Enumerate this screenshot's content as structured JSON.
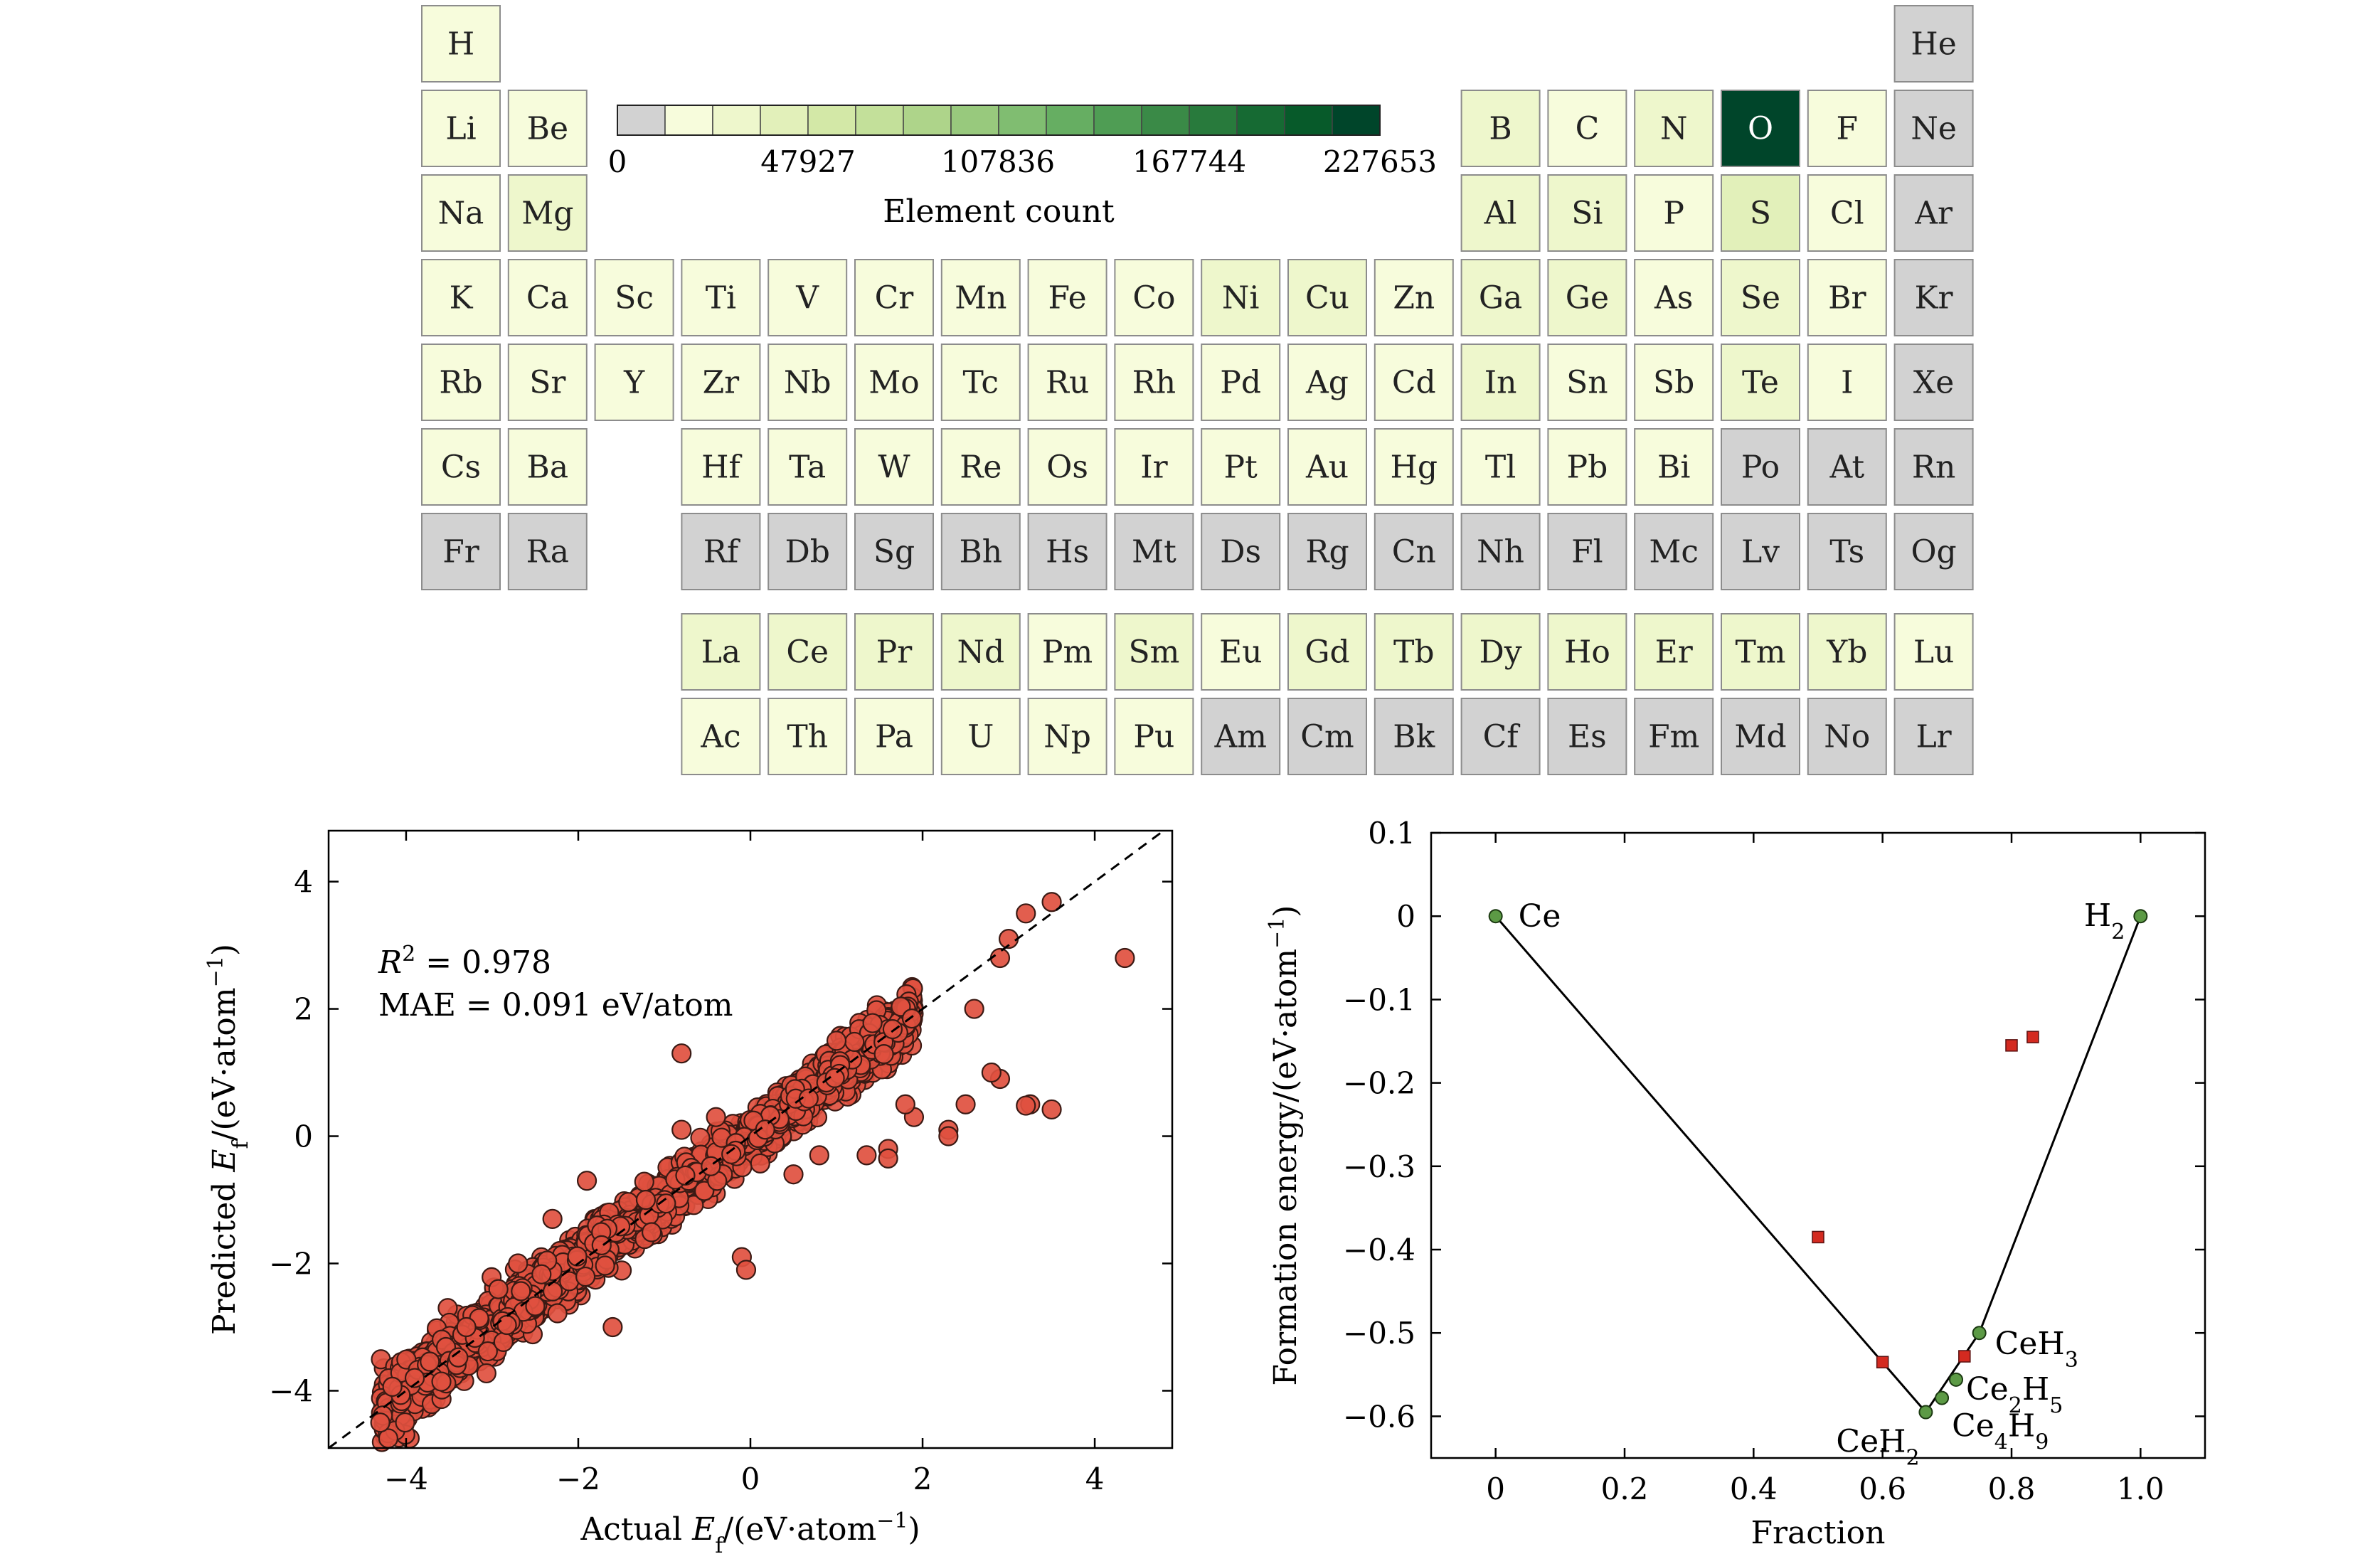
{
  "colors": {
    "zero": "#d2d2d2",
    "scale": [
      "#f7fcdc",
      "#eef7cc",
      "#e2f0ba",
      "#d3e8a7",
      "#c3e09a",
      "#aed48a",
      "#98c97d",
      "#80bd71",
      "#66ae62",
      "#4f9d54",
      "#3a8a47",
      "#287a3c",
      "#166a33",
      "#075a2a",
      "#00452a"
    ],
    "scatter_fill": "#e0503f",
    "stable": "#5c9a45",
    "unstable": "#d42a20"
  },
  "chart_data": [
    {
      "type": "heatmap",
      "title": "",
      "colorbar": {
        "label": "Element count",
        "ticks": [
          "0",
          "47927",
          "107836",
          "167744",
          "227653"
        ],
        "max": 227653
      },
      "elements": [
        {
          "symbol": "H",
          "row": 1,
          "col": 1,
          "count": 12000
        },
        {
          "symbol": "He",
          "row": 1,
          "col": 18,
          "count": 0
        },
        {
          "symbol": "Li",
          "row": 2,
          "col": 1,
          "count": 14000
        },
        {
          "symbol": "Be",
          "row": 2,
          "col": 2,
          "count": 6000
        },
        {
          "symbol": "B",
          "row": 2,
          "col": 13,
          "count": 18000
        },
        {
          "symbol": "C",
          "row": 2,
          "col": 14,
          "count": 12000
        },
        {
          "symbol": "N",
          "row": 2,
          "col": 15,
          "count": 18000
        },
        {
          "symbol": "O",
          "row": 2,
          "col": 16,
          "count": 227653
        },
        {
          "symbol": "F",
          "row": 2,
          "col": 17,
          "count": 12000
        },
        {
          "symbol": "Ne",
          "row": 2,
          "col": 18,
          "count": 0
        },
        {
          "symbol": "Na",
          "row": 3,
          "col": 1,
          "count": 14000
        },
        {
          "symbol": "Mg",
          "row": 3,
          "col": 2,
          "count": 24000
        },
        {
          "symbol": "Al",
          "row": 3,
          "col": 13,
          "count": 20000
        },
        {
          "symbol": "Si",
          "row": 3,
          "col": 14,
          "count": 20000
        },
        {
          "symbol": "P",
          "row": 3,
          "col": 15,
          "count": 12000
        },
        {
          "symbol": "S",
          "row": 3,
          "col": 16,
          "count": 45000
        },
        {
          "symbol": "Cl",
          "row": 3,
          "col": 17,
          "count": 8000
        },
        {
          "symbol": "Ar",
          "row": 3,
          "col": 18,
          "count": 0
        },
        {
          "symbol": "K",
          "row": 4,
          "col": 1,
          "count": 14000
        },
        {
          "symbol": "Ca",
          "row": 4,
          "col": 2,
          "count": 14000
        },
        {
          "symbol": "Sc",
          "row": 4,
          "col": 3,
          "count": 8000
        },
        {
          "symbol": "Ti",
          "row": 4,
          "col": 4,
          "count": 8000
        },
        {
          "symbol": "V",
          "row": 4,
          "col": 5,
          "count": 6000
        },
        {
          "symbol": "Cr",
          "row": 4,
          "col": 6,
          "count": 6000
        },
        {
          "symbol": "Mn",
          "row": 4,
          "col": 7,
          "count": 12000
        },
        {
          "symbol": "Fe",
          "row": 4,
          "col": 8,
          "count": 14000
        },
        {
          "symbol": "Co",
          "row": 4,
          "col": 9,
          "count": 12000
        },
        {
          "symbol": "Ni",
          "row": 4,
          "col": 10,
          "count": 20000
        },
        {
          "symbol": "Cu",
          "row": 4,
          "col": 11,
          "count": 20000
        },
        {
          "symbol": "Zn",
          "row": 4,
          "col": 12,
          "count": 14000
        },
        {
          "symbol": "Ga",
          "row": 4,
          "col": 13,
          "count": 18000
        },
        {
          "symbol": "Ge",
          "row": 4,
          "col": 14,
          "count": 20000
        },
        {
          "symbol": "As",
          "row": 4,
          "col": 15,
          "count": 12000
        },
        {
          "symbol": "Se",
          "row": 4,
          "col": 16,
          "count": 30000
        },
        {
          "symbol": "Br",
          "row": 4,
          "col": 17,
          "count": 6000
        },
        {
          "symbol": "Kr",
          "row": 4,
          "col": 18,
          "count": 0
        },
        {
          "symbol": "Rb",
          "row": 5,
          "col": 1,
          "count": 12000
        },
        {
          "symbol": "Sr",
          "row": 5,
          "col": 2,
          "count": 12000
        },
        {
          "symbol": "Y",
          "row": 5,
          "col": 3,
          "count": 12000
        },
        {
          "symbol": "Zr",
          "row": 5,
          "col": 4,
          "count": 6000
        },
        {
          "symbol": "Nb",
          "row": 5,
          "col": 5,
          "count": 6000
        },
        {
          "symbol": "Mo",
          "row": 5,
          "col": 6,
          "count": 6000
        },
        {
          "symbol": "Tc",
          "row": 5,
          "col": 7,
          "count": 6000
        },
        {
          "symbol": "Ru",
          "row": 5,
          "col": 8,
          "count": 8000
        },
        {
          "symbol": "Rh",
          "row": 5,
          "col": 9,
          "count": 14000
        },
        {
          "symbol": "Pd",
          "row": 5,
          "col": 10,
          "count": 14000
        },
        {
          "symbol": "Ag",
          "row": 5,
          "col": 11,
          "count": 12000
        },
        {
          "symbol": "Cd",
          "row": 5,
          "col": 12,
          "count": 8000
        },
        {
          "symbol": "In",
          "row": 5,
          "col": 13,
          "count": 18000
        },
        {
          "symbol": "Sn",
          "row": 5,
          "col": 14,
          "count": 14000
        },
        {
          "symbol": "Sb",
          "row": 5,
          "col": 15,
          "count": 12000
        },
        {
          "symbol": "Te",
          "row": 5,
          "col": 16,
          "count": 30000
        },
        {
          "symbol": "I",
          "row": 5,
          "col": 17,
          "count": 6000
        },
        {
          "symbol": "Xe",
          "row": 5,
          "col": 18,
          "count": 0
        },
        {
          "symbol": "Cs",
          "row": 6,
          "col": 1,
          "count": 12000
        },
        {
          "symbol": "Ba",
          "row": 6,
          "col": 2,
          "count": 12000
        },
        {
          "symbol": "Hf",
          "row": 6,
          "col": 4,
          "count": 6000
        },
        {
          "symbol": "Ta",
          "row": 6,
          "col": 5,
          "count": 6000
        },
        {
          "symbol": "W",
          "row": 6,
          "col": 6,
          "count": 6000
        },
        {
          "symbol": "Re",
          "row": 6,
          "col": 7,
          "count": 6000
        },
        {
          "symbol": "Os",
          "row": 6,
          "col": 8,
          "count": 6000
        },
        {
          "symbol": "Ir",
          "row": 6,
          "col": 9,
          "count": 12000
        },
        {
          "symbol": "Pt",
          "row": 6,
          "col": 10,
          "count": 14000
        },
        {
          "symbol": "Au",
          "row": 6,
          "col": 11,
          "count": 14000
        },
        {
          "symbol": "Hg",
          "row": 6,
          "col": 12,
          "count": 8000
        },
        {
          "symbol": "Tl",
          "row": 6,
          "col": 13,
          "count": 12000
        },
        {
          "symbol": "Pb",
          "row": 6,
          "col": 14,
          "count": 12000
        },
        {
          "symbol": "Bi",
          "row": 6,
          "col": 15,
          "count": 8000
        },
        {
          "symbol": "Po",
          "row": 6,
          "col": 16,
          "count": 0
        },
        {
          "symbol": "At",
          "row": 6,
          "col": 17,
          "count": 0
        },
        {
          "symbol": "Rn",
          "row": 6,
          "col": 18,
          "count": 0
        },
        {
          "symbol": "Fr",
          "row": 7,
          "col": 1,
          "count": 0
        },
        {
          "symbol": "Ra",
          "row": 7,
          "col": 2,
          "count": 0
        },
        {
          "symbol": "Rf",
          "row": 7,
          "col": 4,
          "count": 0
        },
        {
          "symbol": "Db",
          "row": 7,
          "col": 5,
          "count": 0
        },
        {
          "symbol": "Sg",
          "row": 7,
          "col": 6,
          "count": 0
        },
        {
          "symbol": "Bh",
          "row": 7,
          "col": 7,
          "count": 0
        },
        {
          "symbol": "Hs",
          "row": 7,
          "col": 8,
          "count": 0
        },
        {
          "symbol": "Mt",
          "row": 7,
          "col": 9,
          "count": 0
        },
        {
          "symbol": "Ds",
          "row": 7,
          "col": 10,
          "count": 0
        },
        {
          "symbol": "Rg",
          "row": 7,
          "col": 11,
          "count": 0
        },
        {
          "symbol": "Cn",
          "row": 7,
          "col": 12,
          "count": 0
        },
        {
          "symbol": "Nh",
          "row": 7,
          "col": 13,
          "count": 0
        },
        {
          "symbol": "Fl",
          "row": 7,
          "col": 14,
          "count": 0
        },
        {
          "symbol": "Mc",
          "row": 7,
          "col": 15,
          "count": 0
        },
        {
          "symbol": "Lv",
          "row": 7,
          "col": 16,
          "count": 0
        },
        {
          "symbol": "Ts",
          "row": 7,
          "col": 17,
          "count": 0
        },
        {
          "symbol": "Og",
          "row": 7,
          "col": 18,
          "count": 0
        },
        {
          "symbol": "La",
          "row": 9,
          "col": 4,
          "count": 22000
        },
        {
          "symbol": "Ce",
          "row": 9,
          "col": 5,
          "count": 20000
        },
        {
          "symbol": "Pr",
          "row": 9,
          "col": 6,
          "count": 20000
        },
        {
          "symbol": "Nd",
          "row": 9,
          "col": 7,
          "count": 22000
        },
        {
          "symbol": "Pm",
          "row": 9,
          "col": 8,
          "count": 12000
        },
        {
          "symbol": "Sm",
          "row": 9,
          "col": 9,
          "count": 18000
        },
        {
          "symbol": "Eu",
          "row": 9,
          "col": 10,
          "count": 14000
        },
        {
          "symbol": "Gd",
          "row": 9,
          "col": 11,
          "count": 18000
        },
        {
          "symbol": "Tb",
          "row": 9,
          "col": 12,
          "count": 18000
        },
        {
          "symbol": "Dy",
          "row": 9,
          "col": 13,
          "count": 20000
        },
        {
          "symbol": "Ho",
          "row": 9,
          "col": 14,
          "count": 20000
        },
        {
          "symbol": "Er",
          "row": 9,
          "col": 15,
          "count": 20000
        },
        {
          "symbol": "Tm",
          "row": 9,
          "col": 16,
          "count": 18000
        },
        {
          "symbol": "Yb",
          "row": 9,
          "col": 17,
          "count": 18000
        },
        {
          "symbol": "Lu",
          "row": 9,
          "col": 18,
          "count": 8000
        },
        {
          "symbol": "Ac",
          "row": 10,
          "col": 4,
          "count": 8000
        },
        {
          "symbol": "Th",
          "row": 10,
          "col": 5,
          "count": 8000
        },
        {
          "symbol": "Pa",
          "row": 10,
          "col": 6,
          "count": 6000
        },
        {
          "symbol": "U",
          "row": 10,
          "col": 7,
          "count": 12000
        },
        {
          "symbol": "Np",
          "row": 10,
          "col": 8,
          "count": 8000
        },
        {
          "symbol": "Pu",
          "row": 10,
          "col": 9,
          "count": 8000
        },
        {
          "symbol": "Am",
          "row": 10,
          "col": 10,
          "count": 0
        },
        {
          "symbol": "Cm",
          "row": 10,
          "col": 11,
          "count": 0
        },
        {
          "symbol": "Bk",
          "row": 10,
          "col": 12,
          "count": 0
        },
        {
          "symbol": "Cf",
          "row": 10,
          "col": 13,
          "count": 0
        },
        {
          "symbol": "Es",
          "row": 10,
          "col": 14,
          "count": 0
        },
        {
          "symbol": "Fm",
          "row": 10,
          "col": 15,
          "count": 0
        },
        {
          "symbol": "Md",
          "row": 10,
          "col": 16,
          "count": 0
        },
        {
          "symbol": "No",
          "row": 10,
          "col": 17,
          "count": 0
        },
        {
          "symbol": "Lr",
          "row": 10,
          "col": 18,
          "count": 0
        }
      ]
    },
    {
      "type": "scatter",
      "title": "",
      "xlabel_prefix": "Actual ",
      "ylabel_prefix": "Predicted ",
      "label_var": "E",
      "label_sub": "f",
      "label_unit": "/(eV·atom",
      "label_sup": "−1",
      "xlim": [
        -4.9,
        4.9
      ],
      "ylim": [
        -4.9,
        4.8
      ],
      "xticks": [
        -4,
        -2,
        0,
        2,
        4
      ],
      "yticks": [
        -4,
        -2,
        0,
        2,
        4
      ],
      "xtick_labels": [
        "−4",
        "−2",
        "0",
        "2",
        "4"
      ],
      "ytick_labels": [
        "−4",
        "−2",
        "0",
        "2",
        "4"
      ],
      "r2_text": " = 0.978",
      "mae_text": "MAE = 0.091 eV/atom",
      "diagonal": "y = x (dashed)",
      "outliers": [
        [
          4.35,
          2.8
        ],
        [
          3.5,
          3.68
        ],
        [
          3.2,
          3.5
        ],
        [
          3.5,
          0.42
        ],
        [
          3.25,
          0.5
        ],
        [
          3.2,
          0.48
        ],
        [
          2.9,
          0.9
        ],
        [
          2.8,
          1.0
        ],
        [
          2.5,
          0.5
        ],
        [
          2.3,
          0.1
        ],
        [
          2.3,
          0.0
        ],
        [
          1.9,
          0.3
        ],
        [
          1.8,
          0.5
        ],
        [
          1.6,
          -0.2
        ],
        [
          1.6,
          -0.35
        ],
        [
          1.35,
          -0.3
        ],
        [
          0.8,
          -0.3
        ],
        [
          -0.1,
          -1.9
        ],
        [
          -0.05,
          -2.1
        ],
        [
          -0.8,
          1.3
        ],
        [
          -0.8,
          0.1
        ],
        [
          -1.6,
          -3.0
        ],
        [
          -2.7,
          -2.0
        ],
        [
          -3.3,
          -3.0
        ],
        [
          2.6,
          2.0
        ],
        [
          1.0,
          1.5
        ],
        [
          -0.4,
          0.3
        ],
        [
          3.0,
          3.1
        ],
        [
          2.9,
          2.8
        ],
        [
          -1.9,
          -0.7
        ],
        [
          -2.3,
          -1.3
        ],
        [
          0.5,
          -0.6
        ],
        [
          -3.9,
          -3.8
        ],
        [
          -4.3,
          -4.5
        ]
      ]
    },
    {
      "type": "line",
      "title": "",
      "xlabel": "Fraction",
      "ylabel_text": "Formation energy/(eV·atom",
      "ylabel_sup": "−1",
      "xlim": [
        -0.1,
        1.1
      ],
      "ylim": [
        -0.65,
        0.1
      ],
      "xticks": [
        0,
        0.2,
        0.4,
        0.6,
        0.8,
        1.0
      ],
      "yticks": [
        0.1,
        0,
        -0.1,
        -0.2,
        -0.3,
        -0.4,
        -0.5,
        -0.6
      ],
      "xtick_labels": [
        "0",
        "0.2",
        "0.4",
        "0.6",
        "0.8",
        "1.0"
      ],
      "ytick_labels": [
        "0.1",
        "0",
        "−0.1",
        "−0.2",
        "−0.3",
        "−0.4",
        "−0.5",
        "−0.6"
      ],
      "hull": [
        [
          0,
          0
        ],
        [
          0.667,
          -0.595
        ],
        [
          0.75,
          -0.5
        ],
        [
          1.0,
          0
        ]
      ],
      "stable_points": [
        {
          "x": 0,
          "y": 0,
          "base": "Ce",
          "sub": ""
        },
        {
          "x": 0.667,
          "y": -0.595,
          "base": "CeH",
          "sub": "2"
        },
        {
          "x": 0.692,
          "y": -0.578,
          "base": "Ce",
          "sub": "4",
          "base2": "H",
          "sub2": "9"
        },
        {
          "x": 0.714,
          "y": -0.556,
          "base": "Ce",
          "sub": "2",
          "base2": "H",
          "sub2": "5"
        },
        {
          "x": 0.75,
          "y": -0.5,
          "base": "CeH",
          "sub": "3"
        },
        {
          "x": 1.0,
          "y": 0,
          "base": "H",
          "sub": "2"
        }
      ],
      "unstable_points": [
        [
          0.5,
          -0.385
        ],
        [
          0.6,
          -0.535
        ],
        [
          0.727,
          -0.528
        ],
        [
          0.8,
          -0.155
        ],
        [
          0.833,
          -0.145
        ]
      ]
    }
  ]
}
